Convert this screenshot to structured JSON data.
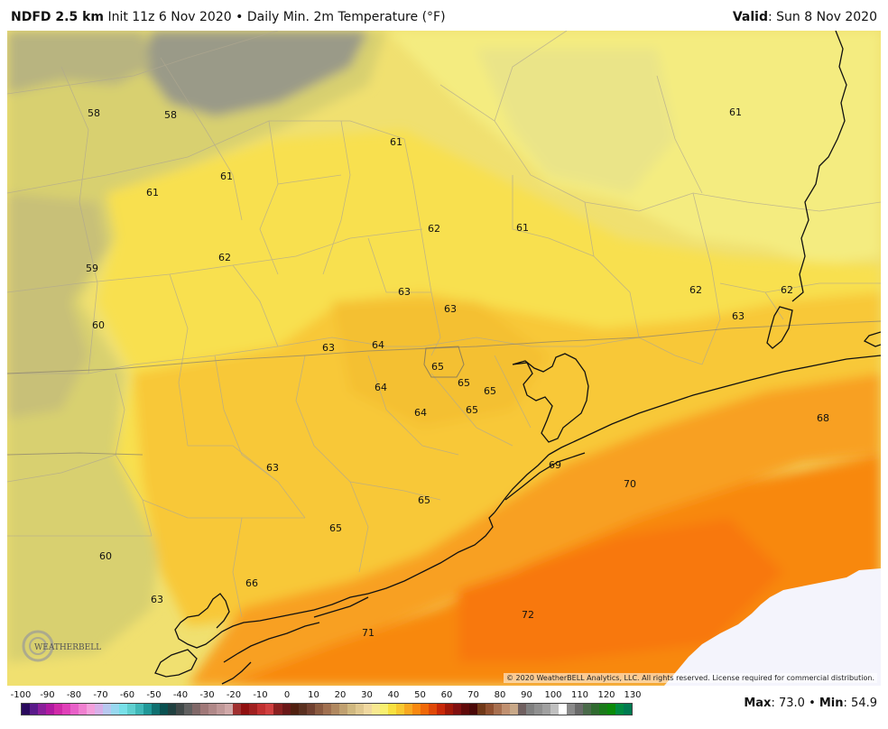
{
  "header": {
    "model": "NDFD 2.5 km",
    "init": "Init 11z 6 Nov 2020",
    "separator": "•",
    "product": "Daily Min. 2m Temperature (°F)",
    "valid_label": "Valid",
    "valid_value": ": Sun 8 Nov 2020"
  },
  "map": {
    "copyright": "© 2020 WeatherBELL Analytics, LLC. All rights reserved. License required for commercial distribution.",
    "logo_text": "WEATHERBELL",
    "labels": [
      {
        "text": "58"
      },
      {
        "text": "58"
      },
      {
        "text": "61"
      },
      {
        "text": "61"
      },
      {
        "text": "61"
      },
      {
        "text": "61"
      },
      {
        "text": "62"
      },
      {
        "text": "61"
      },
      {
        "text": "59"
      },
      {
        "text": "62"
      },
      {
        "text": "63"
      },
      {
        "text": "63"
      },
      {
        "text": "62"
      },
      {
        "text": "62"
      },
      {
        "text": "60"
      },
      {
        "text": "63"
      },
      {
        "text": "64"
      },
      {
        "text": "63"
      },
      {
        "text": "65"
      },
      {
        "text": "65"
      },
      {
        "text": "65"
      },
      {
        "text": "64"
      },
      {
        "text": "64"
      },
      {
        "text": "65"
      },
      {
        "text": "68"
      },
      {
        "text": "69"
      },
      {
        "text": "70"
      },
      {
        "text": "63"
      },
      {
        "text": "65"
      },
      {
        "text": "65"
      },
      {
        "text": "60"
      },
      {
        "text": "66"
      },
      {
        "text": "63"
      },
      {
        "text": "72"
      },
      {
        "text": "71"
      }
    ]
  },
  "legend": {
    "ticks": [
      "-100",
      "-90",
      "-80",
      "-70",
      "-60",
      "-50",
      "-40",
      "-30",
      "-20",
      "-10",
      "0",
      "10",
      "20",
      "30",
      "40",
      "50",
      "60",
      "70",
      "80",
      "90",
      "100",
      "110",
      "120",
      "130"
    ],
    "colors": [
      "#2a0a5e",
      "#5a1a8a",
      "#8a1f9a",
      "#b01aa0",
      "#d02aa8",
      "#e040b8",
      "#e860c8",
      "#f080d0",
      "#f4a0dc",
      "#d8b0e8",
      "#b8c8f0",
      "#98d8f0",
      "#78e0e8",
      "#60d0d0",
      "#40b8b8",
      "#209898",
      "#107070",
      "#0a5050",
      "#204040",
      "#404848",
      "#606060",
      "#806868",
      "#a07878",
      "#b08888",
      "#c09898",
      "#d0a8a8",
      "#a03030",
      "#901010",
      "#a02020",
      "#c03030",
      "#d04040",
      "#8a2020",
      "#6a1818",
      "#502010",
      "#5a3020",
      "#704030",
      "#8a5a40",
      "#a07050",
      "#b08860",
      "#c0a070",
      "#d0b880",
      "#e0c890",
      "#f0d8a0",
      "#f8e890",
      "#f8f070",
      "#f8e040",
      "#f8c830",
      "#f8a820",
      "#f88810",
      "#f06808",
      "#e04808",
      "#c82808",
      "#a01808",
      "#801010",
      "#600a0a",
      "#4a0808",
      "#703818",
      "#905030",
      "#a87050",
      "#c09070",
      "#c8a888",
      "#706060",
      "#808080",
      "#909090",
      "#a0a0a0",
      "#c0c0c0",
      "#ffffff",
      "#8a8a8a",
      "#6a6a6a",
      "#4a6a4a",
      "#306a30",
      "#1a7a1a",
      "#0a8a0a",
      "#008a40",
      "#007a50"
    ],
    "max_label": "Max",
    "max_value": ": 73.0",
    "sep": "•",
    "min_label": "Min",
    "min_value": ": 54.9"
  }
}
